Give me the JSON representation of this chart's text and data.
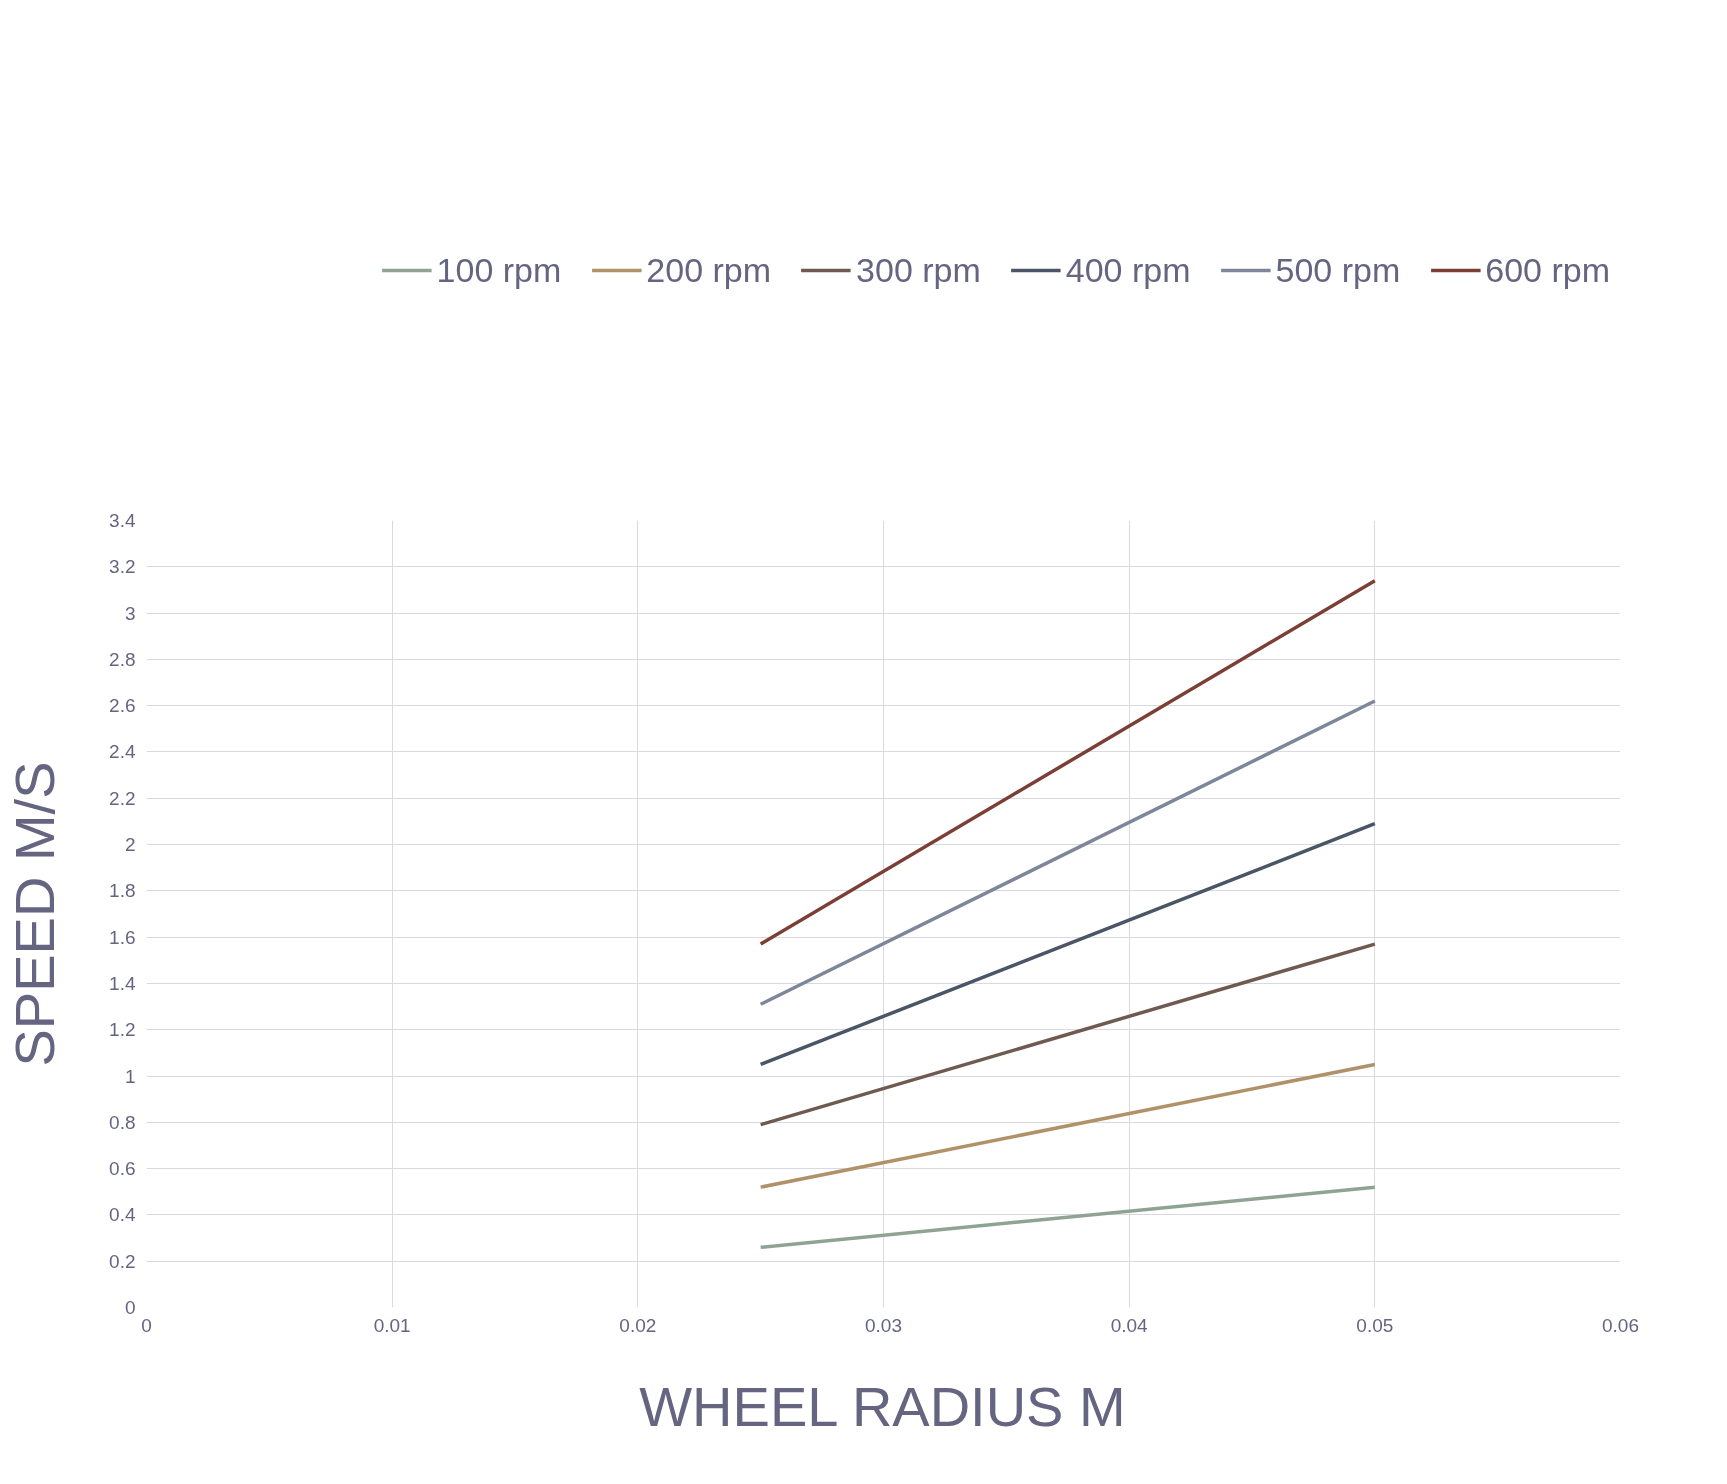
{
  "chart_data": {
    "type": "line",
    "xlabel": "WHEEL RADIUS M",
    "ylabel": "SPEED M/S",
    "x": [
      0.025,
      0.05
    ],
    "series": [
      {
        "name": "100 rpm",
        "color": "#8fa393",
        "values": [
          0.26,
          0.52
        ]
      },
      {
        "name": "200 rpm",
        "color": "#b0926a",
        "values": [
          0.52,
          1.05
        ]
      },
      {
        "name": "300 rpm",
        "color": "#6e5a50",
        "values": [
          0.79,
          1.57
        ]
      },
      {
        "name": "400 rpm",
        "color": "#4a5566",
        "values": [
          1.05,
          2.09
        ]
      },
      {
        "name": "500 rpm",
        "color": "#7d8799",
        "values": [
          1.31,
          2.62
        ]
      },
      {
        "name": "600 rpm",
        "color": "#7b3f35",
        "values": [
          1.57,
          3.14
        ]
      }
    ],
    "xlim": [
      0,
      0.06
    ],
    "xticks": [
      0,
      0.01,
      0.02,
      0.03,
      0.04,
      0.05,
      0.06
    ],
    "ylim": [
      0,
      3.4
    ],
    "yticks": [
      0,
      0.2,
      0.4,
      0.6,
      0.8,
      1,
      1.2,
      1.4,
      1.6,
      1.8,
      2,
      2.2,
      2.4,
      2.6,
      2.8,
      3,
      3.2,
      3.4
    ],
    "grid": true,
    "legend": "top",
    "marker": "none",
    "line_style": "solid"
  }
}
